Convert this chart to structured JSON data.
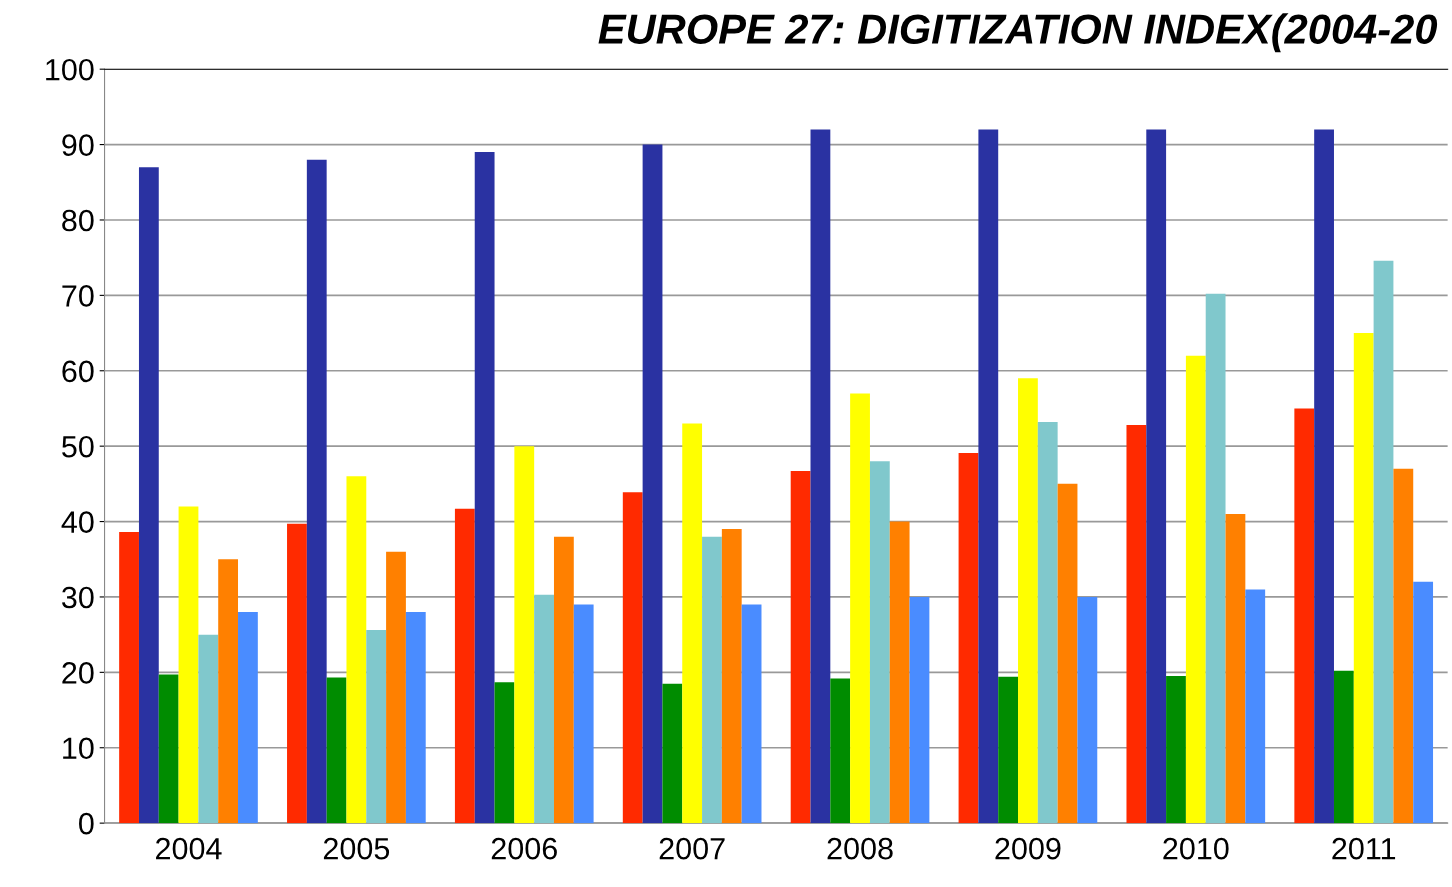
{
  "chart_data": {
    "type": "bar",
    "title": "EUROPE 27: DIGITIZATION INDEX(2004-20",
    "categories": [
      "2004",
      "2005",
      "2006",
      "2007",
      "2008",
      "2009",
      "2010",
      "2011"
    ],
    "series": [
      {
        "color": "#ff2a00",
        "values": [
          38.6,
          39.7,
          41.7,
          43.9,
          46.7,
          49.1,
          52.8,
          55
        ]
      },
      {
        "color": "#2a32a2",
        "values": [
          87,
          88,
          89,
          90,
          92,
          92,
          92,
          92
        ]
      },
      {
        "color": "#008c00",
        "values": [
          19.7,
          19.3,
          18.7,
          18.5,
          19.2,
          19.4,
          19.5,
          20.2
        ]
      },
      {
        "color": "#ffff00",
        "values": [
          42,
          46,
          50,
          53,
          57,
          59,
          62,
          65
        ]
      },
      {
        "color": "#80c8cc",
        "values": [
          25,
          25.6,
          30.3,
          38,
          48,
          53.2,
          70.2,
          74.6
        ]
      },
      {
        "color": "#ff8000",
        "values": [
          35,
          36,
          38,
          39,
          40,
          45,
          41,
          47
        ]
      },
      {
        "color": "#4a8cff",
        "values": [
          28,
          28,
          29,
          29,
          30,
          30,
          31,
          32
        ]
      }
    ],
    "ylim": [
      0,
      100
    ],
    "yticks": [
      0,
      10,
      20,
      30,
      40,
      50,
      60,
      70,
      80,
      90,
      100
    ],
    "grid": "y",
    "legend": false
  }
}
